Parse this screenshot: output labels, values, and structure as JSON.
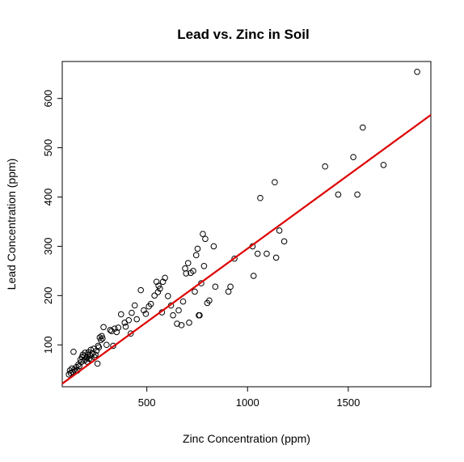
{
  "chart_data": {
    "type": "scatter",
    "title": "Lead vs. Zinc in Soil",
    "xlabel": "Zinc Concentration (ppm)",
    "ylabel": "Lead Concentration (ppm)",
    "xlim": [
      80,
      1910
    ],
    "ylim": [
      15,
      675
    ],
    "x_ticks": [
      500,
      1000,
      1500
    ],
    "y_ticks": [
      100,
      200,
      300,
      400,
      500,
      600
    ],
    "grid": false,
    "legend": "none",
    "point_color": "#000000",
    "fit_line_color": "#dd0000",
    "fit_line": {
      "intercept": -2.6,
      "slope": 0.298
    },
    "points": [
      [
        113,
        40
      ],
      [
        118,
        48
      ],
      [
        122,
        43
      ],
      [
        128,
        52
      ],
      [
        132,
        45
      ],
      [
        136,
        86
      ],
      [
        140,
        50
      ],
      [
        145,
        47
      ],
      [
        150,
        55
      ],
      [
        155,
        48
      ],
      [
        160,
        60
      ],
      [
        165,
        57
      ],
      [
        170,
        70
      ],
      [
        174,
        65
      ],
      [
        178,
        75
      ],
      [
        182,
        80
      ],
      [
        186,
        68
      ],
      [
        190,
        77
      ],
      [
        193,
        84
      ],
      [
        196,
        70
      ],
      [
        200,
        74
      ],
      [
        203,
        66
      ],
      [
        207,
        80
      ],
      [
        210,
        85
      ],
      [
        214,
        72
      ],
      [
        218,
        78
      ],
      [
        222,
        90
      ],
      [
        226,
        70
      ],
      [
        230,
        83
      ],
      [
        236,
        92
      ],
      [
        240,
        75
      ],
      [
        245,
        80
      ],
      [
        250,
        88
      ],
      [
        255,
        62
      ],
      [
        258,
        98
      ],
      [
        262,
        95
      ],
      [
        266,
        115
      ],
      [
        272,
        110
      ],
      [
        276,
        118
      ],
      [
        280,
        113
      ],
      [
        285,
        136
      ],
      [
        300,
        100
      ],
      [
        318,
        130
      ],
      [
        325,
        128
      ],
      [
        333,
        98
      ],
      [
        340,
        133
      ],
      [
        350,
        126
      ],
      [
        358,
        135
      ],
      [
        372,
        162
      ],
      [
        390,
        145
      ],
      [
        395,
        137
      ],
      [
        410,
        150
      ],
      [
        420,
        123
      ],
      [
        425,
        165
      ],
      [
        440,
        180
      ],
      [
        450,
        152
      ],
      [
        470,
        211
      ],
      [
        485,
        170
      ],
      [
        495,
        163
      ],
      [
        510,
        178
      ],
      [
        520,
        183
      ],
      [
        538,
        200
      ],
      [
        548,
        228
      ],
      [
        555,
        207
      ],
      [
        558,
        220
      ],
      [
        565,
        214
      ],
      [
        575,
        166
      ],
      [
        580,
        228
      ],
      [
        590,
        236
      ],
      [
        605,
        199
      ],
      [
        620,
        180
      ],
      [
        630,
        160
      ],
      [
        650,
        143
      ],
      [
        658,
        170
      ],
      [
        672,
        140
      ],
      [
        680,
        188
      ],
      [
        690,
        255
      ],
      [
        695,
        245
      ],
      [
        705,
        266
      ],
      [
        710,
        145
      ],
      [
        718,
        246
      ],
      [
        730,
        250
      ],
      [
        738,
        208
      ],
      [
        745,
        282
      ],
      [
        752,
        295
      ],
      [
        758,
        160
      ],
      [
        762,
        160
      ],
      [
        770,
        225
      ],
      [
        778,
        325
      ],
      [
        784,
        260
      ],
      [
        790,
        315
      ],
      [
        800,
        185
      ],
      [
        810,
        190
      ],
      [
        832,
        300
      ],
      [
        840,
        218
      ],
      [
        905,
        208
      ],
      [
        915,
        218
      ],
      [
        935,
        275
      ],
      [
        1025,
        300
      ],
      [
        1030,
        240
      ],
      [
        1050,
        285
      ],
      [
        1063,
        398
      ],
      [
        1095,
        285
      ],
      [
        1135,
        430
      ],
      [
        1142,
        277
      ],
      [
        1158,
        332
      ],
      [
        1182,
        310
      ],
      [
        1385,
        462
      ],
      [
        1450,
        405
      ],
      [
        1525,
        481
      ],
      [
        1545,
        405
      ],
      [
        1572,
        541
      ],
      [
        1675,
        465
      ],
      [
        1842,
        654
      ]
    ]
  }
}
